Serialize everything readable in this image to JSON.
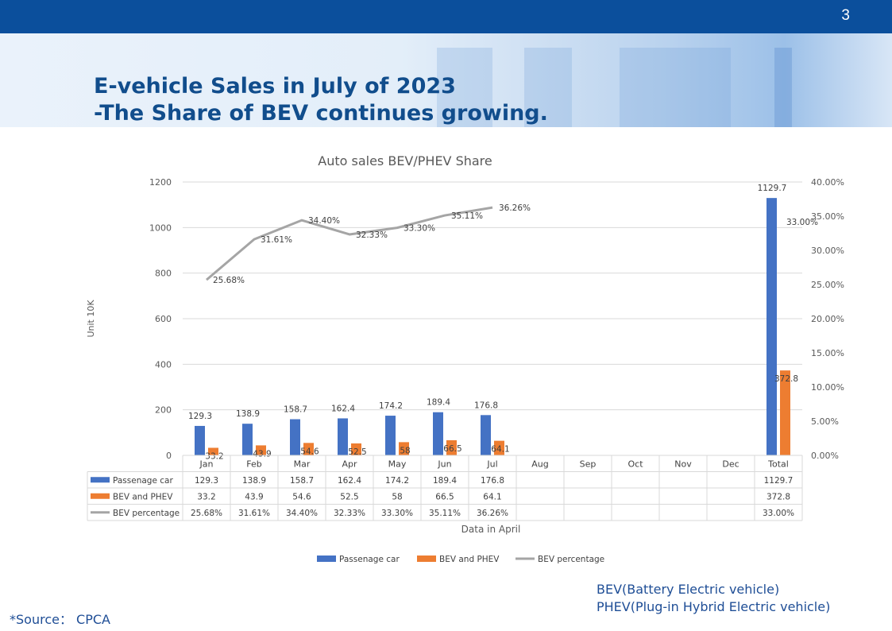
{
  "page_number": "3",
  "title_line1": "E-vehicle Sales in July of 2023",
  "title_line2": "-The Share of BEV continues growing.",
  "chart_data": {
    "type": "bar",
    "title": "Auto sales BEV/PHEV Share",
    "ylabel": "Unit 10K",
    "xlabel": "Data in April",
    "ylim": [
      0,
      1200
    ],
    "y2lim": [
      0,
      0.4
    ],
    "yticks": [
      "0",
      "200",
      "400",
      "600",
      "800",
      "1000",
      "1200"
    ],
    "y2ticks": [
      "0.00%",
      "5.00%",
      "10.00%",
      "15.00%",
      "20.00%",
      "25.00%",
      "30.00%",
      "35.00%",
      "40.00%"
    ],
    "categories": [
      "Jan",
      "Feb",
      "Mar",
      "Apr",
      "May",
      "Jun",
      "Jul",
      "Aug",
      "Sep",
      "Oct",
      "Nov",
      "Dec",
      "Total"
    ],
    "series": [
      {
        "name": "Passenage car",
        "type": "bar",
        "color": "#4472c4",
        "values": [
          129.3,
          138.9,
          158.7,
          162.4,
          174.2,
          189.4,
          176.8,
          null,
          null,
          null,
          null,
          null,
          1129.7
        ],
        "labels": [
          "129.3",
          "138.9",
          "158.7",
          "162.4",
          "174.2",
          "189.4",
          "176.8",
          "",
          "",
          "",
          "",
          "",
          "1129.7"
        ]
      },
      {
        "name": "BEV and PHEV",
        "type": "bar",
        "color": "#ed7d31",
        "values": [
          33.2,
          43.9,
          54.6,
          52.5,
          58,
          66.5,
          64.1,
          null,
          null,
          null,
          null,
          null,
          372.8
        ],
        "labels": [
          "33.2",
          "43.9",
          "54.6",
          "52.5",
          "58",
          "66.5",
          "64.1",
          "",
          "",
          "",
          "",
          "",
          "372.8"
        ]
      },
      {
        "name": "BEV percentage",
        "type": "line",
        "axis": "secondary",
        "color": "#a5a5a5",
        "values": [
          0.2568,
          0.3161,
          0.344,
          0.3233,
          0.333,
          0.3511,
          0.3626,
          null,
          null,
          null,
          null,
          null,
          0.33
        ],
        "labels": [
          "25.68%",
          "31.61%",
          "34.40%",
          "32.33%",
          "33.30%",
          "35.11%",
          "36.26%",
          "",
          "",
          "",
          "",
          "",
          "33.00%"
        ]
      }
    ],
    "grid": true,
    "legend_position": "bottom"
  },
  "notes": [
    "BEV(Battery Electric vehicle)",
    "PHEV(Plug-in Hybrid Electric vehicle)"
  ],
  "source": "*Source：  CPCA"
}
